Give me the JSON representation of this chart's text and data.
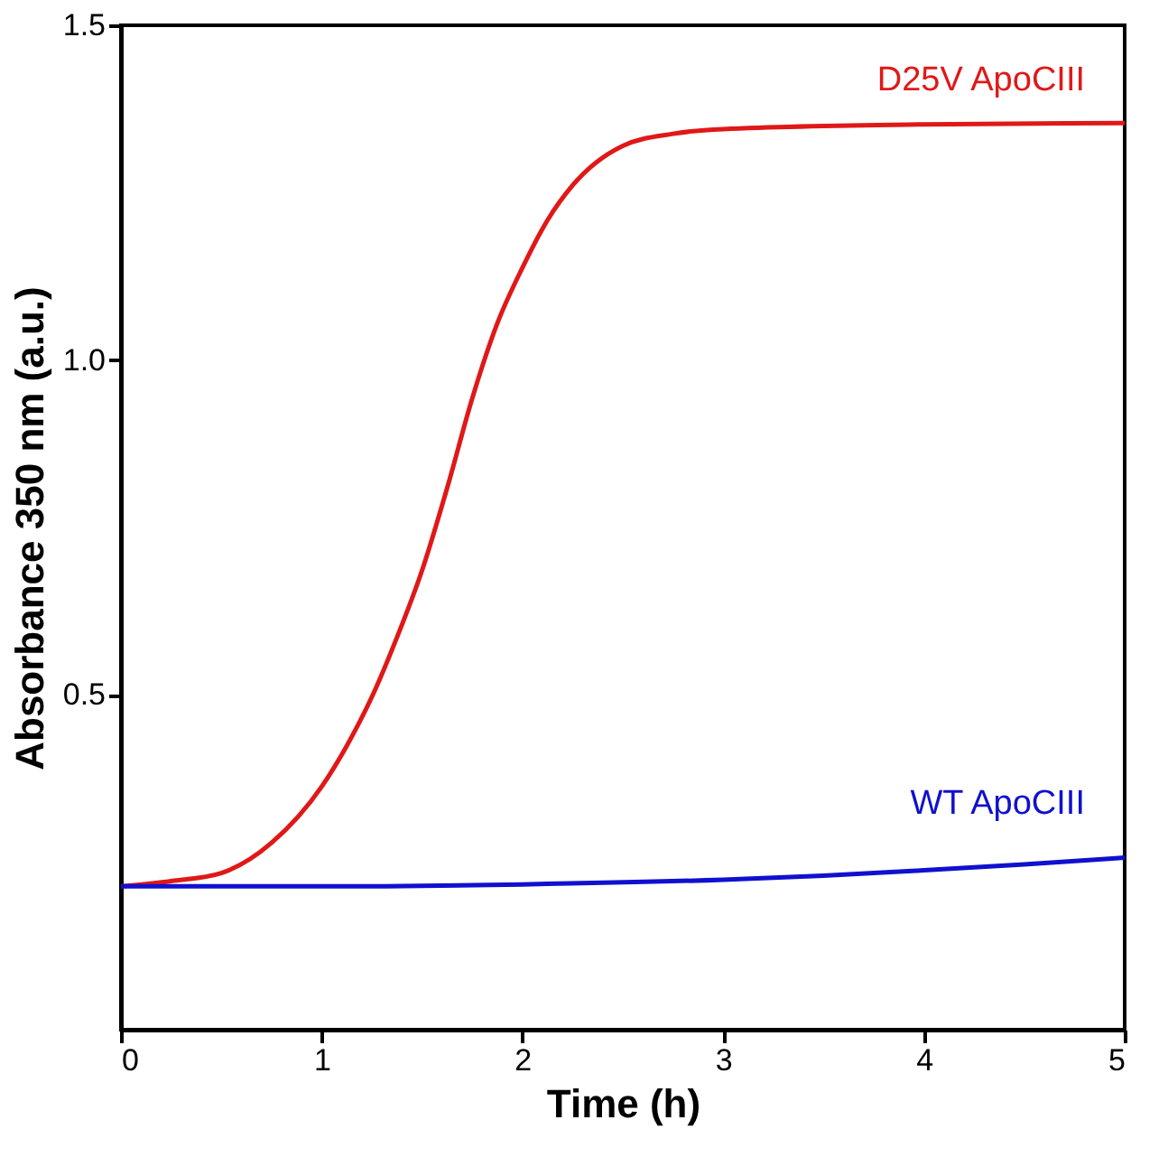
{
  "chart_data": {
    "type": "line",
    "xlabel": "Time (h)",
    "ylabel": "Absorbance 350 nm (a.u.)",
    "xlim": [
      0,
      5
    ],
    "xticks": [
      0,
      1,
      2,
      3,
      4,
      5
    ],
    "ylim": [
      0,
      1.5
    ],
    "yticks": [
      {
        "value": 0.5,
        "label": "0.5"
      },
      {
        "value": 1.0,
        "label": "1.0"
      },
      {
        "value": 1.5,
        "label": "1.5"
      }
    ],
    "grid": false,
    "legend": false,
    "marker": "none",
    "line_style": "solid",
    "series": [
      {
        "name": "D25V ApoCIII",
        "color": "#e01818",
        "x": [
          0,
          0.25,
          0.5,
          0.75,
          1.0,
          1.125,
          1.25,
          1.375,
          1.5,
          1.625,
          1.75,
          1.875,
          2.0,
          2.125,
          2.25,
          2.5,
          2.75,
          3,
          4,
          5
        ],
        "values": [
          0.214,
          0.222,
          0.234,
          0.279,
          0.363,
          0.424,
          0.497,
          0.586,
          0.686,
          0.809,
          0.943,
          1.055,
          1.138,
          1.209,
          1.261,
          1.32,
          1.338,
          1.345,
          1.352,
          1.354
        ]
      },
      {
        "name": "WT ApoCIII",
        "color": "#1010d0",
        "x": [
          0,
          1,
          2,
          3,
          3.5,
          4,
          4.5,
          5
        ],
        "values": [
          0.214,
          0.214,
          0.217,
          0.224,
          0.23,
          0.238,
          0.247,
          0.257
        ]
      }
    ]
  }
}
